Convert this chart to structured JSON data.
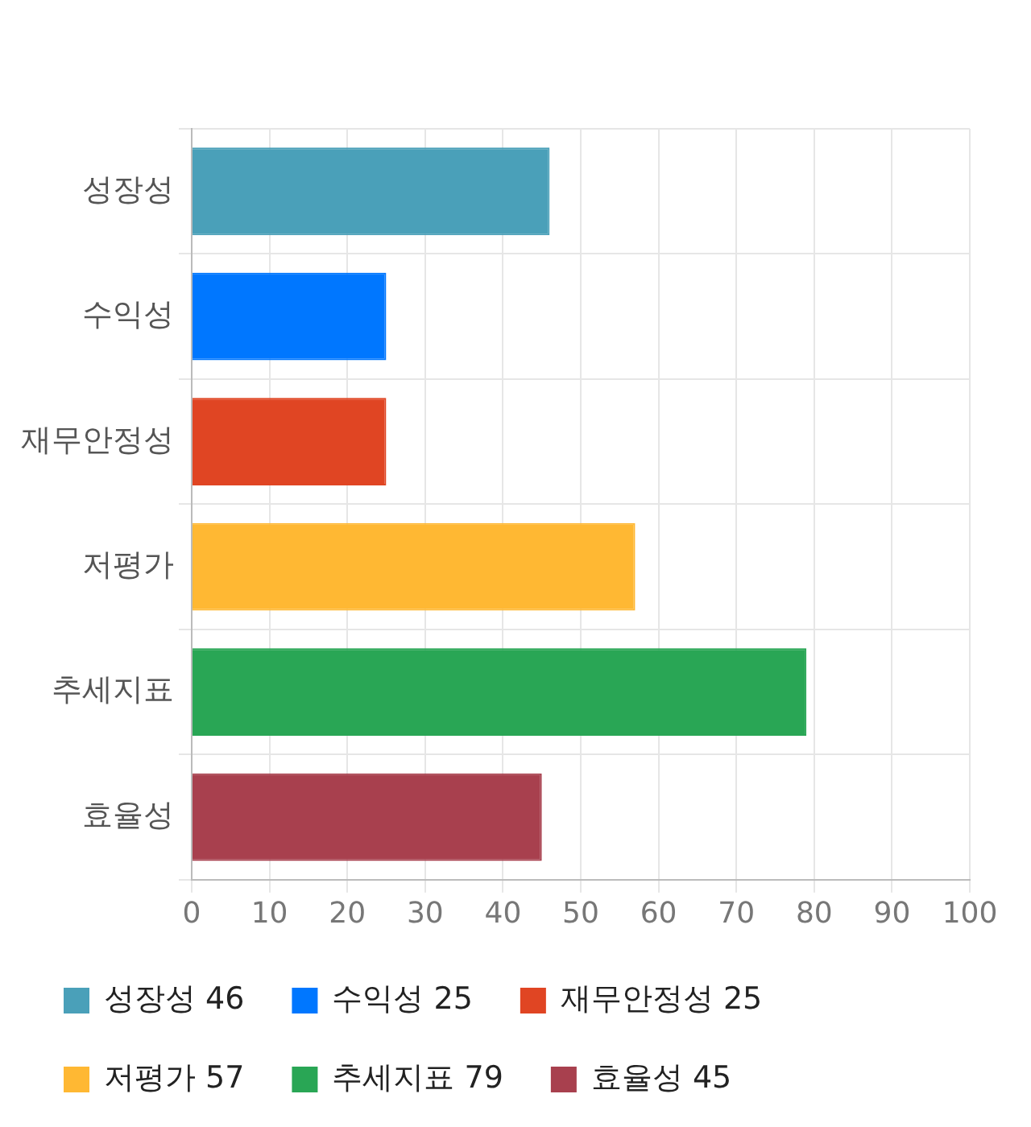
{
  "chart_data": {
    "type": "bar",
    "orientation": "horizontal",
    "categories": [
      "성장성",
      "수익성",
      "재무안정성",
      "저평가",
      "추세지표",
      "효율성"
    ],
    "series": [
      {
        "name": "성장성 46",
        "color": "#4aa0b9",
        "values": [
          46,
          null,
          null,
          null,
          null,
          null
        ]
      },
      {
        "name": "수익성 25",
        "color": "#0077ff",
        "values": [
          null,
          25,
          null,
          null,
          null,
          null
        ]
      },
      {
        "name": "재무안정성 25",
        "color": "#e04523",
        "values": [
          null,
          null,
          25,
          null,
          null,
          null
        ]
      },
      {
        "name": "저평가 57",
        "color": "#ffb833",
        "values": [
          null,
          null,
          null,
          57,
          null,
          null
        ]
      },
      {
        "name": "추세지표 79",
        "color": "#29a655",
        "values": [
          null,
          null,
          null,
          null,
          79,
          null
        ]
      },
      {
        "name": "효율성 45",
        "color": "#a8404e",
        "values": [
          null,
          null,
          null,
          null,
          null,
          45
        ]
      }
    ],
    "xlim": [
      0,
      100
    ],
    "xticks": [
      0,
      10,
      20,
      30,
      40,
      50,
      60,
      70,
      80,
      90,
      100
    ],
    "grid": true,
    "legend": "bottom"
  }
}
